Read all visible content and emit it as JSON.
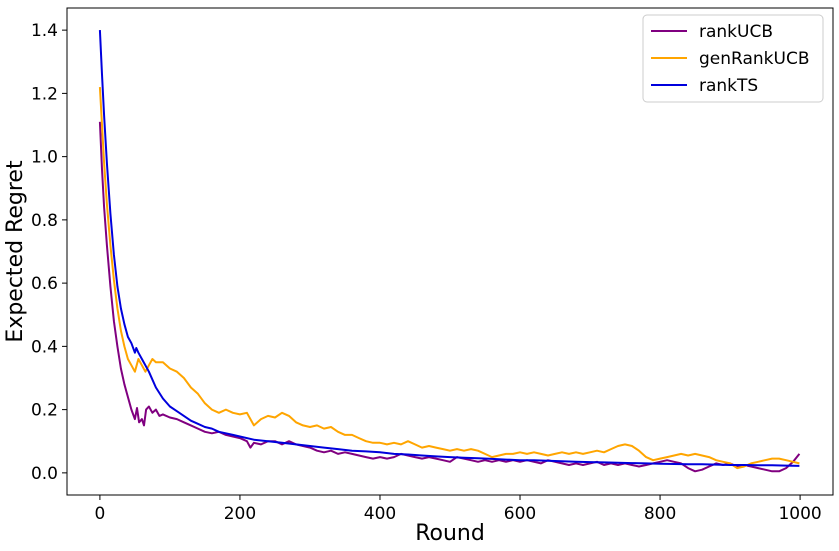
{
  "chart_data": {
    "type": "line",
    "title": "",
    "xlabel": "Round",
    "ylabel": "Expected Regret",
    "xlim": [
      -47,
      1047
    ],
    "ylim": [
      -0.07,
      1.47
    ],
    "xticks": [
      0,
      200,
      400,
      600,
      800,
      1000
    ],
    "yticks": [
      0.0,
      0.2,
      0.4,
      0.6,
      0.8,
      1.0,
      1.2,
      1.4
    ],
    "grid": false,
    "legend_position": "top-right",
    "series": [
      {
        "name": "rankUCB",
        "color": "#800080",
        "points": [
          [
            0,
            1.11
          ],
          [
            3,
            0.96
          ],
          [
            6,
            0.84
          ],
          [
            10,
            0.72
          ],
          [
            15,
            0.59
          ],
          [
            20,
            0.48
          ],
          [
            25,
            0.4
          ],
          [
            30,
            0.33
          ],
          [
            35,
            0.28
          ],
          [
            40,
            0.24
          ],
          [
            45,
            0.2
          ],
          [
            50,
            0.17
          ],
          [
            53,
            0.205
          ],
          [
            56,
            0.16
          ],
          [
            60,
            0.17
          ],
          [
            63,
            0.15
          ],
          [
            66,
            0.2
          ],
          [
            70,
            0.21
          ],
          [
            75,
            0.19
          ],
          [
            80,
            0.2
          ],
          [
            85,
            0.18
          ],
          [
            90,
            0.185
          ],
          [
            100,
            0.175
          ],
          [
            110,
            0.17
          ],
          [
            120,
            0.16
          ],
          [
            130,
            0.15
          ],
          [
            140,
            0.14
          ],
          [
            150,
            0.13
          ],
          [
            160,
            0.125
          ],
          [
            170,
            0.13
          ],
          [
            180,
            0.12
          ],
          [
            190,
            0.115
          ],
          [
            200,
            0.11
          ],
          [
            210,
            0.1
          ],
          [
            215,
            0.08
          ],
          [
            220,
            0.095
          ],
          [
            230,
            0.09
          ],
          [
            240,
            0.1
          ],
          [
            250,
            0.1
          ],
          [
            260,
            0.09
          ],
          [
            270,
            0.1
          ],
          [
            280,
            0.09
          ],
          [
            290,
            0.085
          ],
          [
            300,
            0.08
          ],
          [
            310,
            0.07
          ],
          [
            320,
            0.065
          ],
          [
            330,
            0.07
          ],
          [
            340,
            0.06
          ],
          [
            350,
            0.065
          ],
          [
            360,
            0.06
          ],
          [
            370,
            0.055
          ],
          [
            380,
            0.05
          ],
          [
            390,
            0.045
          ],
          [
            400,
            0.05
          ],
          [
            410,
            0.045
          ],
          [
            420,
            0.05
          ],
          [
            430,
            0.06
          ],
          [
            440,
            0.055
          ],
          [
            450,
            0.05
          ],
          [
            460,
            0.045
          ],
          [
            470,
            0.05
          ],
          [
            480,
            0.045
          ],
          [
            490,
            0.04
          ],
          [
            500,
            0.035
          ],
          [
            510,
            0.05
          ],
          [
            520,
            0.045
          ],
          [
            530,
            0.04
          ],
          [
            540,
            0.035
          ],
          [
            550,
            0.04
          ],
          [
            560,
            0.035
          ],
          [
            570,
            0.04
          ],
          [
            580,
            0.035
          ],
          [
            590,
            0.04
          ],
          [
            600,
            0.035
          ],
          [
            610,
            0.04
          ],
          [
            620,
            0.035
          ],
          [
            630,
            0.03
          ],
          [
            640,
            0.04
          ],
          [
            650,
            0.035
          ],
          [
            660,
            0.03
          ],
          [
            670,
            0.025
          ],
          [
            680,
            0.03
          ],
          [
            690,
            0.025
          ],
          [
            700,
            0.03
          ],
          [
            710,
            0.035
          ],
          [
            720,
            0.025
          ],
          [
            730,
            0.03
          ],
          [
            740,
            0.025
          ],
          [
            750,
            0.03
          ],
          [
            760,
            0.025
          ],
          [
            770,
            0.02
          ],
          [
            780,
            0.025
          ],
          [
            790,
            0.03
          ],
          [
            800,
            0.035
          ],
          [
            810,
            0.04
          ],
          [
            820,
            0.035
          ],
          [
            830,
            0.03
          ],
          [
            840,
            0.015
          ],
          [
            850,
            0.005
          ],
          [
            860,
            0.01
          ],
          [
            870,
            0.02
          ],
          [
            880,
            0.03
          ],
          [
            890,
            0.025
          ],
          [
            900,
            0.03
          ],
          [
            910,
            0.02
          ],
          [
            920,
            0.025
          ],
          [
            930,
            0.02
          ],
          [
            940,
            0.015
          ],
          [
            950,
            0.01
          ],
          [
            960,
            0.005
          ],
          [
            970,
            0.005
          ],
          [
            980,
            0.015
          ],
          [
            990,
            0.035
          ],
          [
            999,
            0.06
          ]
        ]
      },
      {
        "name": "genRankUCB",
        "color": "#ffa500",
        "points": [
          [
            0,
            1.22
          ],
          [
            3,
            1.1
          ],
          [
            6,
            0.98
          ],
          [
            10,
            0.85
          ],
          [
            15,
            0.72
          ],
          [
            20,
            0.61
          ],
          [
            25,
            0.52
          ],
          [
            30,
            0.45
          ],
          [
            35,
            0.4
          ],
          [
            40,
            0.36
          ],
          [
            45,
            0.34
          ],
          [
            50,
            0.32
          ],
          [
            55,
            0.36
          ],
          [
            60,
            0.34
          ],
          [
            65,
            0.32
          ],
          [
            70,
            0.34
          ],
          [
            75,
            0.36
          ],
          [
            80,
            0.35
          ],
          [
            90,
            0.35
          ],
          [
            100,
            0.33
          ],
          [
            110,
            0.32
          ],
          [
            120,
            0.3
          ],
          [
            130,
            0.27
          ],
          [
            140,
            0.25
          ],
          [
            150,
            0.22
          ],
          [
            160,
            0.2
          ],
          [
            170,
            0.19
          ],
          [
            180,
            0.2
          ],
          [
            190,
            0.19
          ],
          [
            200,
            0.185
          ],
          [
            210,
            0.19
          ],
          [
            220,
            0.15
          ],
          [
            230,
            0.17
          ],
          [
            240,
            0.18
          ],
          [
            250,
            0.175
          ],
          [
            260,
            0.19
          ],
          [
            270,
            0.18
          ],
          [
            280,
            0.16
          ],
          [
            290,
            0.15
          ],
          [
            300,
            0.145
          ],
          [
            310,
            0.15
          ],
          [
            320,
            0.14
          ],
          [
            330,
            0.145
          ],
          [
            340,
            0.13
          ],
          [
            350,
            0.12
          ],
          [
            360,
            0.12
          ],
          [
            370,
            0.11
          ],
          [
            380,
            0.1
          ],
          [
            390,
            0.095
          ],
          [
            400,
            0.095
          ],
          [
            410,
            0.09
          ],
          [
            420,
            0.095
          ],
          [
            430,
            0.09
          ],
          [
            440,
            0.1
          ],
          [
            450,
            0.09
          ],
          [
            460,
            0.08
          ],
          [
            470,
            0.085
          ],
          [
            480,
            0.08
          ],
          [
            490,
            0.075
          ],
          [
            500,
            0.07
          ],
          [
            510,
            0.075
          ],
          [
            520,
            0.07
          ],
          [
            530,
            0.075
          ],
          [
            540,
            0.07
          ],
          [
            550,
            0.06
          ],
          [
            560,
            0.05
          ],
          [
            570,
            0.055
          ],
          [
            580,
            0.06
          ],
          [
            590,
            0.06
          ],
          [
            600,
            0.065
          ],
          [
            610,
            0.06
          ],
          [
            620,
            0.065
          ],
          [
            630,
            0.06
          ],
          [
            640,
            0.055
          ],
          [
            650,
            0.06
          ],
          [
            660,
            0.065
          ],
          [
            670,
            0.06
          ],
          [
            680,
            0.065
          ],
          [
            690,
            0.06
          ],
          [
            700,
            0.065
          ],
          [
            710,
            0.07
          ],
          [
            720,
            0.065
          ],
          [
            730,
            0.075
          ],
          [
            740,
            0.085
          ],
          [
            750,
            0.09
          ],
          [
            760,
            0.085
          ],
          [
            770,
            0.07
          ],
          [
            780,
            0.05
          ],
          [
            790,
            0.04
          ],
          [
            800,
            0.045
          ],
          [
            810,
            0.05
          ],
          [
            820,
            0.055
          ],
          [
            830,
            0.06
          ],
          [
            840,
            0.055
          ],
          [
            850,
            0.06
          ],
          [
            860,
            0.055
          ],
          [
            870,
            0.05
          ],
          [
            880,
            0.04
          ],
          [
            890,
            0.035
          ],
          [
            900,
            0.03
          ],
          [
            910,
            0.015
          ],
          [
            920,
            0.02
          ],
          [
            930,
            0.03
          ],
          [
            940,
            0.035
          ],
          [
            950,
            0.04
          ],
          [
            960,
            0.045
          ],
          [
            970,
            0.045
          ],
          [
            980,
            0.04
          ],
          [
            990,
            0.035
          ],
          [
            999,
            0.03
          ]
        ]
      },
      {
        "name": "rankTS",
        "color": "#0000dd",
        "points": [
          [
            0,
            1.4
          ],
          [
            3,
            1.26
          ],
          [
            6,
            1.13
          ],
          [
            10,
            0.98
          ],
          [
            15,
            0.82
          ],
          [
            20,
            0.69
          ],
          [
            25,
            0.59
          ],
          [
            30,
            0.52
          ],
          [
            35,
            0.47
          ],
          [
            40,
            0.43
          ],
          [
            45,
            0.41
          ],
          [
            50,
            0.38
          ],
          [
            52,
            0.395
          ],
          [
            55,
            0.38
          ],
          [
            60,
            0.36
          ],
          [
            70,
            0.32
          ],
          [
            80,
            0.27
          ],
          [
            90,
            0.235
          ],
          [
            100,
            0.21
          ],
          [
            110,
            0.195
          ],
          [
            120,
            0.18
          ],
          [
            130,
            0.165
          ],
          [
            140,
            0.155
          ],
          [
            150,
            0.145
          ],
          [
            160,
            0.14
          ],
          [
            170,
            0.13
          ],
          [
            180,
            0.125
          ],
          [
            190,
            0.12
          ],
          [
            200,
            0.115
          ],
          [
            220,
            0.105
          ],
          [
            240,
            0.1
          ],
          [
            260,
            0.095
          ],
          [
            280,
            0.09
          ],
          [
            300,
            0.085
          ],
          [
            320,
            0.08
          ],
          [
            340,
            0.075
          ],
          [
            360,
            0.07
          ],
          [
            380,
            0.068
          ],
          [
            400,
            0.065
          ],
          [
            420,
            0.06
          ],
          [
            440,
            0.058
          ],
          [
            460,
            0.055
          ],
          [
            480,
            0.052
          ],
          [
            500,
            0.05
          ],
          [
            520,
            0.048
          ],
          [
            540,
            0.046
          ],
          [
            560,
            0.044
          ],
          [
            580,
            0.042
          ],
          [
            600,
            0.04
          ],
          [
            620,
            0.04
          ],
          [
            640,
            0.038
          ],
          [
            660,
            0.037
          ],
          [
            680,
            0.035
          ],
          [
            700,
            0.034
          ],
          [
            720,
            0.033
          ],
          [
            740,
            0.032
          ],
          [
            760,
            0.031
          ],
          [
            780,
            0.03
          ],
          [
            800,
            0.029
          ],
          [
            820,
            0.028
          ],
          [
            840,
            0.027
          ],
          [
            860,
            0.027
          ],
          [
            880,
            0.026
          ],
          [
            900,
            0.025
          ],
          [
            920,
            0.025
          ],
          [
            940,
            0.024
          ],
          [
            960,
            0.024
          ],
          [
            980,
            0.023
          ],
          [
            999,
            0.022
          ]
        ]
      }
    ]
  }
}
